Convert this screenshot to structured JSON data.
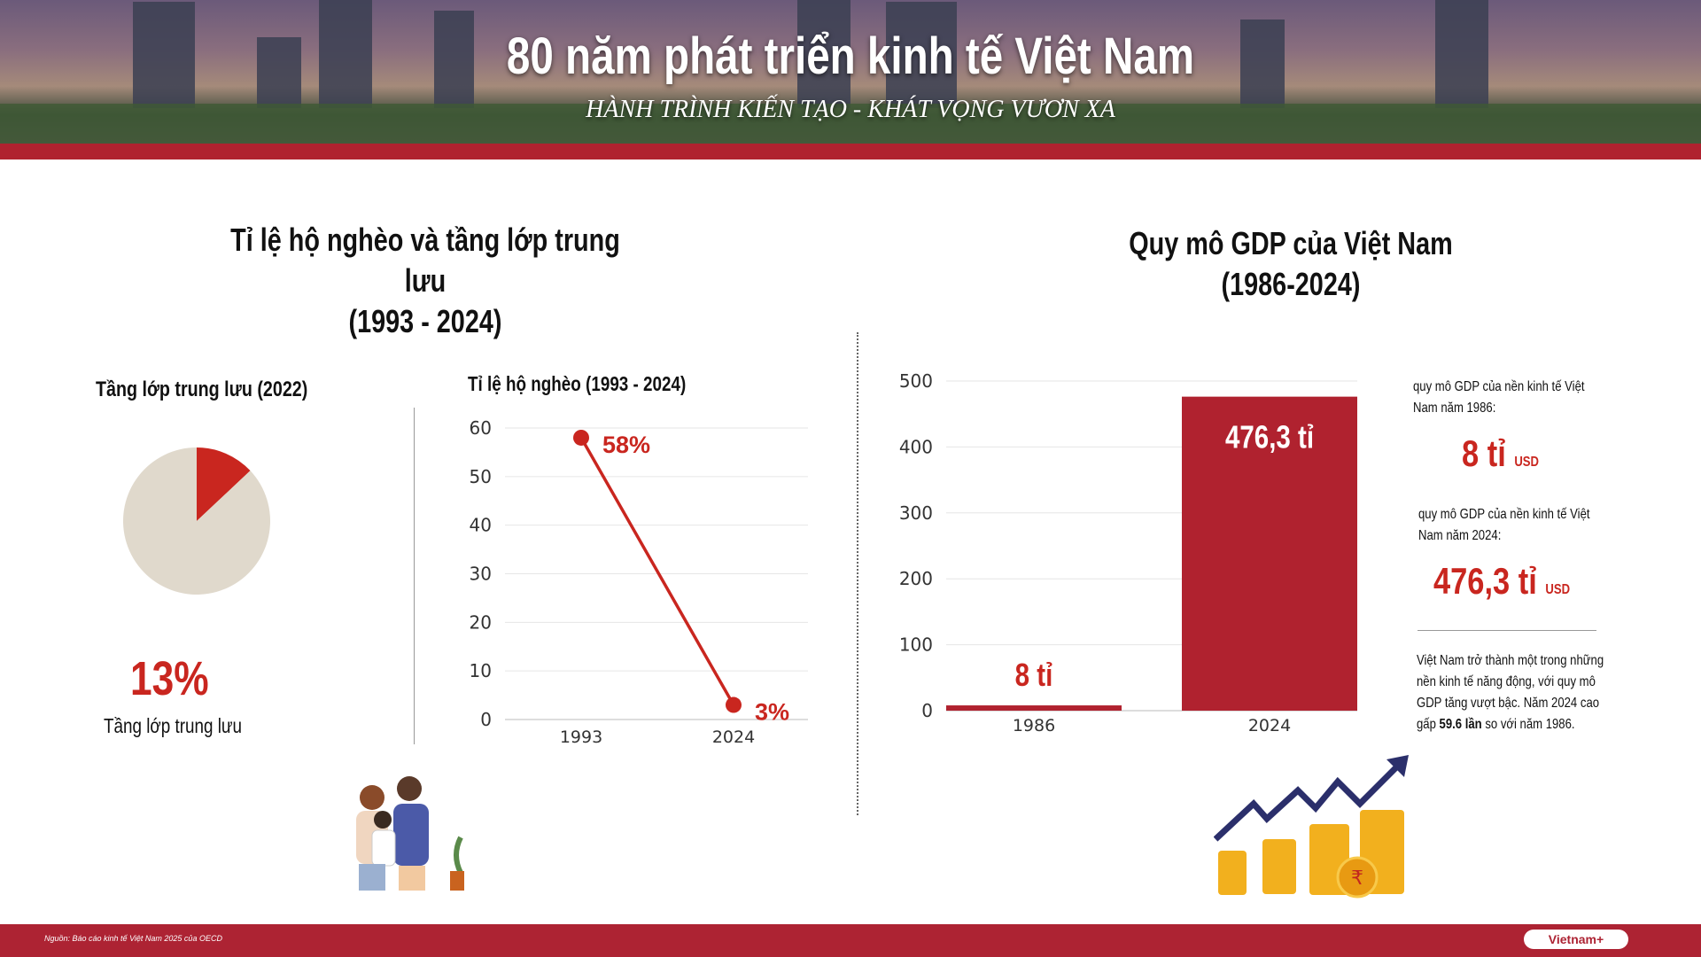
{
  "header": {
    "title": "80 năm phát triển kinh tế Việt Nam",
    "subtitle": "HÀNH TRÌNH KIẾN TẠO - KHÁT VỌNG VƯƠN XA"
  },
  "left_section": {
    "title_line1": "Tỉ lệ hộ nghèo và tầng lớp trung lưu",
    "title_line2": "(1993 - 2024)"
  },
  "right_section": {
    "title_line1": "Quy mô GDP của Việt Nam",
    "title_line2": "(1986-2024)"
  },
  "colors": {
    "accent": "#c9261f",
    "bar": "#b0222f",
    "pie_rest": "#e0d9cc",
    "footer": "#ad2333"
  },
  "chart_data": [
    {
      "type": "pie",
      "title": "Tầng lớp trung lưu (2022)",
      "slices": [
        {
          "label": "Tầng lớp trung lưu",
          "value": 13
        },
        {
          "label": "",
          "value": 87
        }
      ],
      "big_label": "13%",
      "caption": "Tầng lớp trung lưu"
    },
    {
      "type": "line",
      "title": "Tỉ lệ hộ nghèo (1993 - 2024)",
      "x": [
        "1993",
        "2024"
      ],
      "values": [
        58,
        3
      ],
      "data_labels": [
        "58%",
        "3%"
      ],
      "ylim": [
        0,
        60
      ],
      "yticks": [
        "0",
        "10",
        "20",
        "30",
        "40",
        "50",
        "60"
      ],
      "grid": true
    },
    {
      "type": "bar",
      "categories": [
        "1986",
        "2024"
      ],
      "values": [
        8,
        476.3
      ],
      "data_labels": [
        "8 tỉ",
        "476,3 tỉ"
      ],
      "ylim": [
        0,
        500
      ],
      "yticks": [
        "0",
        "100",
        "200",
        "300",
        "400",
        "500"
      ],
      "grid": true
    }
  ],
  "panel": {
    "label_1986": "quy mô GDP của nền kinh tế Việt Nam năm 1986:",
    "value_1986": "8 tỉ",
    "unit": "USD",
    "label_2024": "quy mô GDP của nền kinh tế Việt Nam năm 2024:",
    "value_2024": "476,3 tỉ",
    "note_pre": "Việt Nam trở thành một trong những nền kinh tế năng động, với quy mô GDP tăng vượt bậc. Năm 2024 cao gấp ",
    "note_bold": "59.6 lần",
    "note_post": " so với năm 1986."
  },
  "footer": {
    "source": "Nguồn: Báo cáo kinh tế Việt Nam 2025 của OECD",
    "logo": "Vietnam+"
  }
}
